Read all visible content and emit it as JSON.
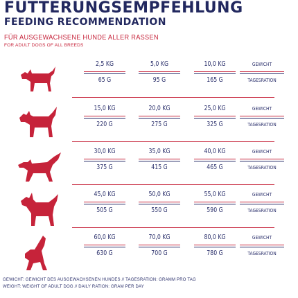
{
  "header": {
    "title_de": "FÜTTERUNGSEMPFEHLUNG",
    "title_en": "FEEDING RECOMMENDATION",
    "subtitle_de": "FÜR AUSGEWACHSENE HUNDE ALLER RASSEN",
    "subtitle_en": "FOR ADULT DOGS OF ALL BREEDS"
  },
  "colors": {
    "navy": "#2a2f6b",
    "red": "#c6233a"
  },
  "rows": [
    {
      "icon": "small-dog-icon",
      "weights": [
        "2,5 KG",
        "5,0 KG",
        "10,0 KG"
      ],
      "rations": [
        "65 G",
        "95 G",
        "165 G"
      ],
      "weight_label": "GEWICHT",
      "ration_label": "TAGESRATION"
    },
    {
      "icon": "medium-small-dog-icon",
      "weights": [
        "15,0 KG",
        "20,0 KG",
        "25,0 KG"
      ],
      "rations": [
        "220 G",
        "275 G",
        "325 G"
      ],
      "weight_label": "GEWICHT",
      "ration_label": "TAGESRATION"
    },
    {
      "icon": "medium-dog-icon",
      "weights": [
        "30,0 KG",
        "35,0 KG",
        "40,0 KG"
      ],
      "rations": [
        "375 G",
        "415 G",
        "465 G"
      ],
      "weight_label": "GEWICHT",
      "ration_label": "TAGESRATION"
    },
    {
      "icon": "large-dog-icon",
      "weights": [
        "45,0 KG",
        "50,0 KG",
        "55,0 KG"
      ],
      "rations": [
        "505 G",
        "550 G",
        "590 G"
      ],
      "weight_label": "GEWICHT",
      "ration_label": "TAGESRATION"
    },
    {
      "icon": "giant-dog-icon",
      "weights": [
        "60,0 KG",
        "70,0 KG",
        "80,0 KG"
      ],
      "rations": [
        "630 G",
        "700 G",
        "780 G"
      ],
      "weight_label": "GEWICHT",
      "ration_label": "TAGESRATION"
    }
  ],
  "footer": {
    "line_de": "GEWICHT: GEWICHT DES AUSGEWACHSENEN HUNDES // TAGESRATION: GRAMM PRO TAG",
    "line_en": "WEIGHT: WEIGHT OF ADULT DOG // DAILY RATION: GRAM PER DAY"
  }
}
